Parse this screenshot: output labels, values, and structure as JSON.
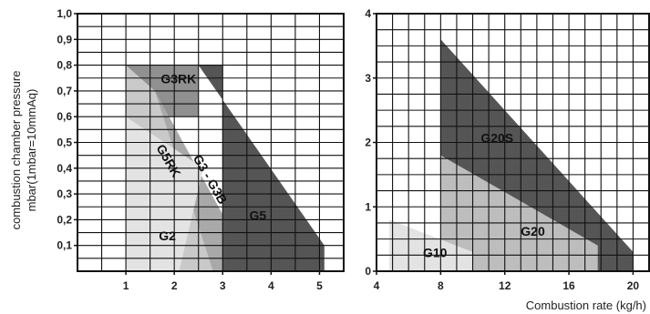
{
  "chart_data": [
    {
      "type": "area",
      "ylabel_lines": [
        "combustion chamber pressure",
        "mbar(1mbar=10mmAq)"
      ],
      "xlabel": "",
      "xlim": [
        0,
        5.5
      ],
      "ylim": [
        0,
        1.0
      ],
      "x_ticks": [
        1,
        2,
        3,
        4,
        5
      ],
      "y_ticks": [
        "0,1",
        "0,2",
        "0,3",
        "0,4",
        "0,5",
        "0,6",
        "0,7",
        "0,8",
        "0,9",
        "1,0"
      ],
      "grid": true,
      "regions": [
        {
          "name": "G5",
          "color": "#555555",
          "points": [
            [
              2.5,
              0.8
            ],
            [
              5.1,
              0.1
            ],
            [
              5.1,
              0
            ],
            [
              3,
              0
            ],
            [
              3,
              0.8
            ]
          ],
          "label_pos": [
            3.55,
            0.2
          ]
        },
        {
          "name": "G3RK",
          "color": "#909090",
          "points": [
            [
              1,
              0.8
            ],
            [
              2.5,
              0.8
            ],
            [
              2.5,
              0.6
            ],
            [
              1,
              0.6
            ]
          ],
          "label_pos": [
            1.72,
            0.73
          ]
        },
        {
          "name": "G3 - G3B",
          "color": "#a9a9a9",
          "points": [
            [
              1.6,
              0.7
            ],
            [
              3,
              0.22
            ],
            [
              3,
              0
            ],
            [
              2.1,
              0
            ],
            [
              1.6,
              0.3
            ]
          ],
          "label_pos": [
            2.38,
            0.44
          ],
          "rotate": 60
        },
        {
          "name": "G5RK",
          "color": "#c9c9c9",
          "points": [
            [
              1,
              0.8
            ],
            [
              1.6,
              0.7
            ],
            [
              2.8,
              0
            ],
            [
              1,
              0
            ]
          ],
          "label_pos": [
            1.62,
            0.48
          ],
          "rotate": 60
        },
        {
          "name": "G2",
          "color": "#e3e3e3",
          "points": [
            [
              1,
              0.6
            ],
            [
              2.6,
              0.4
            ],
            [
              2.1,
              0
            ],
            [
              1,
              0
            ]
          ],
          "label_pos": [
            1.68,
            0.12
          ]
        }
      ]
    },
    {
      "type": "area",
      "xlabel": "Combustion rate (kg/h)",
      "ylabel": "",
      "xlim": [
        4,
        21
      ],
      "ylim": [
        0,
        4
      ],
      "x_ticks": [
        4,
        8,
        12,
        16,
        20
      ],
      "y_ticks": [
        "0",
        "1",
        "2",
        "3",
        "4"
      ],
      "grid": true,
      "regions": [
        {
          "name": "G20S",
          "color": "#555555",
          "points": [
            [
              8,
              3.6
            ],
            [
              20,
              0.3
            ],
            [
              20,
              0
            ],
            [
              8,
              0
            ]
          ],
          "label_pos": [
            10.5,
            2.0
          ]
        },
        {
          "name": "G20",
          "color": "#bdbdbd",
          "points": [
            [
              8,
              1.8
            ],
            [
              17.8,
              0.4
            ],
            [
              17.8,
              0
            ],
            [
              8,
              0
            ]
          ],
          "label_pos": [
            13,
            0.55
          ]
        },
        {
          "name": "G10",
          "color": "#e3e3e3",
          "points": [
            [
              4.8,
              0.8
            ],
            [
              10,
              0.3
            ],
            [
              10,
              0
            ],
            [
              4.8,
              0
            ]
          ],
          "label_pos": [
            6.9,
            0.22
          ]
        }
      ]
    }
  ]
}
